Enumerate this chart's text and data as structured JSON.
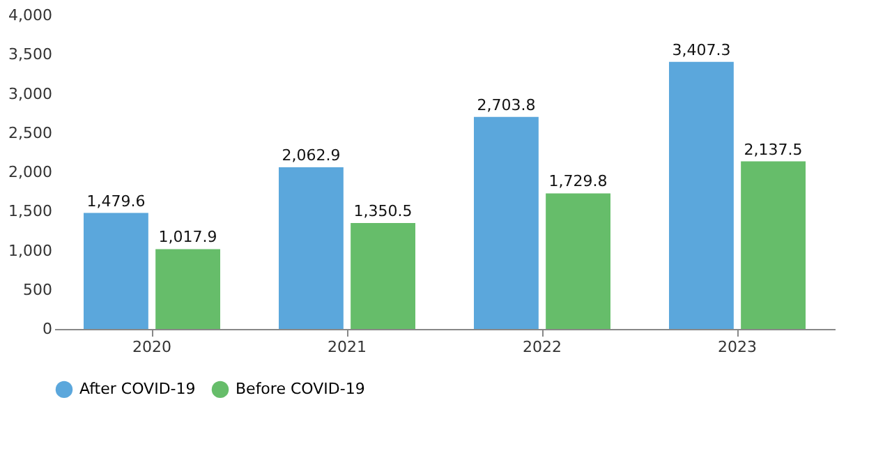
{
  "chart_data": {
    "type": "bar",
    "categories": [
      "2020",
      "2021",
      "2022",
      "2023"
    ],
    "series": [
      {
        "name": "After COVID-19",
        "color": "#5ba7dc",
        "values": [
          1479.6,
          2062.9,
          2703.8,
          3407.3
        ],
        "value_labels": [
          "1,479.6",
          "2,062.9",
          "2,703.8",
          "3,407.3"
        ]
      },
      {
        "name": "Before COVID-19",
        "color": "#66bd6a",
        "values": [
          1017.9,
          1350.5,
          1729.8,
          2137.5
        ],
        "value_labels": [
          "1,017.9",
          "1,350.5",
          "1,729.8",
          "2,137.5"
        ]
      }
    ],
    "ylim": [
      0,
      4000
    ],
    "yticks": [
      0,
      500,
      {
        "value": 1000,
        "label": "1,000"
      },
      {
        "value": 1500,
        "label": "1,500"
      },
      {
        "value": 2000,
        "label": "2,000"
      },
      {
        "value": 2500,
        "label": "2,500"
      },
      {
        "value": 3000,
        "label": "3,000"
      },
      {
        "value": 3500,
        "label": "3,500"
      },
      {
        "value": 4000,
        "label": "4,000"
      }
    ],
    "grid": false,
    "legend": "bottom"
  }
}
